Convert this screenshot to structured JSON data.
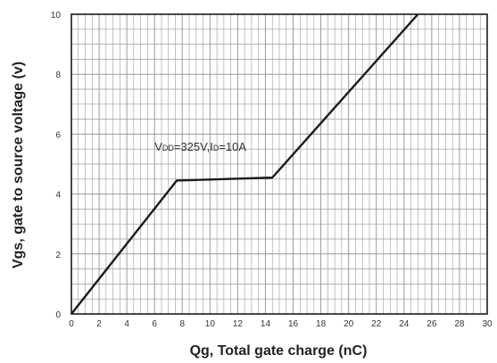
{
  "chart_data": {
    "type": "line",
    "xlabel": "Qg, Total gate charge (nC)",
    "ylabel": "Vgs, gate to source voltage (v)",
    "xlim": [
      0,
      30
    ],
    "ylim": [
      0,
      10
    ],
    "x_ticks": [
      "0",
      "2",
      "4",
      "6",
      "8",
      "10",
      "12",
      "14",
      "16",
      "18",
      "20",
      "22",
      "24",
      "26",
      "28",
      "30"
    ],
    "y_ticks": [
      "0",
      "2",
      "4",
      "6",
      "8",
      "10"
    ],
    "grid": true,
    "series": [
      {
        "x": [
          0,
          7.6,
          14.5,
          25
        ],
        "y": [
          0,
          4.45,
          4.55,
          10
        ]
      }
    ],
    "annotation": {
      "text": "VDD=325V,ID=10A",
      "parts": [
        {
          "text": "V",
          "sub": false
        },
        {
          "text": "DD",
          "sub": true
        },
        {
          "text": "=325V,I",
          "sub": false
        },
        {
          "text": "D",
          "sub": true
        },
        {
          "text": "=10A",
          "sub": false
        }
      ],
      "x": 6,
      "y": 5.45
    },
    "colors": {
      "line": "#1a1a1a",
      "grid": "#9a9a9a",
      "frame": "#1a1a1a"
    }
  }
}
